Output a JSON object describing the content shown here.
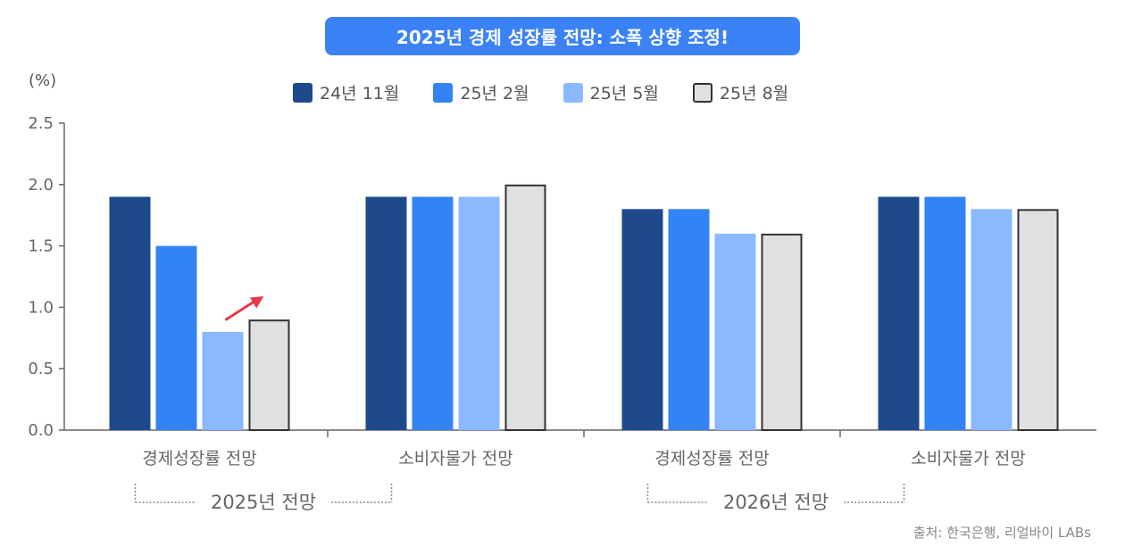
{
  "title": "2025년 경제 성장률 전망: 소폭 상향 조정!",
  "unit_label": "(%)",
  "source": "출처: 한국은행, 리얼바이 LABs",
  "colors": {
    "title_bg": "#3b82f6",
    "arrow": "#e8374a",
    "axis": "#666666",
    "bracket": "#888888"
  },
  "chart_data": {
    "type": "bar",
    "ylim": [
      0,
      2.5
    ],
    "yticks": [
      "0.0",
      "0.5",
      "1.0",
      "1.5",
      "2.0",
      "2.5"
    ],
    "categories": [
      "경제성장률 전망",
      "소비자물가 전망",
      "경제성장률 전망",
      "소비자물가 전망"
    ],
    "groups": [
      {
        "label": "2025년 전망",
        "categories": [
          0,
          1
        ]
      },
      {
        "label": "2026년 전망",
        "categories": [
          2,
          3
        ]
      }
    ],
    "series": [
      {
        "name": "24년 11월",
        "color": "#1e4a8c",
        "values": [
          1.9,
          1.9,
          1.8,
          1.9
        ]
      },
      {
        "name": "25년 2월",
        "color": "#3483f5",
        "values": [
          1.5,
          1.9,
          1.8,
          1.9
        ]
      },
      {
        "name": "25년 5월",
        "color": "#8ab9ff",
        "values": [
          0.8,
          1.9,
          1.6,
          1.8
        ]
      },
      {
        "name": "25년 8월",
        "color": "#e0e0e0",
        "outline": "#333333",
        "values": [
          0.9,
          2.0,
          1.6,
          1.8
        ]
      }
    ],
    "annotation": {
      "type": "up-arrow",
      "category": 0,
      "between_series": [
        2,
        3
      ]
    }
  }
}
